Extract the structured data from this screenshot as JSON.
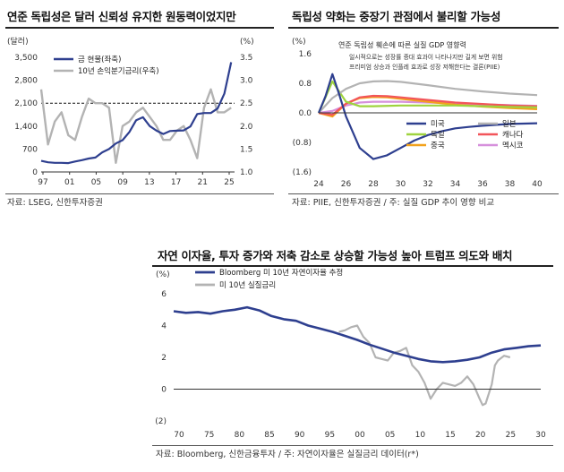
{
  "panels": [
    {
      "title": "연준 독립성은 달러 신뢰성 유지한 원동력이었지만",
      "source": "자료: LSEG, 신한투자증권"
    },
    {
      "title": "독립성 약화는 중장기 관점에서 불리할 가능성",
      "source": "자료: PIIE, 신한투자증권 / 주: 실질 GDP 추이 영향 비교"
    },
    {
      "title": "자연 이자율, 투자 증가와 저축 감소로 상승할 가능성 높아 트럼프 의도와 배치",
      "source": "자료: Bloomberg, 신한금융투자 / 주: 자연이자율은 실질금리 데이터(r*)"
    }
  ],
  "chart_data": [
    {
      "type": "line",
      "title": "연준 독립성은 달러 신뢰성 유지한 원동력이었지만",
      "ylabel_left": "(달러)",
      "ylabel_right": "(%)",
      "x_ticks": [
        "97",
        "01",
        "05",
        "09",
        "13",
        "17",
        "21",
        "25"
      ],
      "x_range": [
        1997,
        2025.5
      ],
      "y_left_ticks": [
        "0",
        "700",
        "1,400",
        "2,100",
        "2,800",
        "3,500"
      ],
      "y_left_range": [
        0,
        3500
      ],
      "y_right_ticks": [
        "1.0",
        "1.5",
        "2.0",
        "2.5",
        "3.0",
        "3.5"
      ],
      "y_right_range": [
        1.0,
        3.5
      ],
      "reference_line": {
        "axis": "left",
        "value": 2100,
        "style": "dashed"
      },
      "legend_position": "top-left",
      "series": [
        {
          "name": "금 현물(좌축)",
          "axis": "left",
          "color": "#2e3f8f",
          "x": [
            1997,
            1998,
            1999,
            2000,
            2001,
            2002,
            2003,
            2004,
            2005,
            2006,
            2007,
            2008,
            2009,
            2010,
            2011,
            2012,
            2013,
            2014,
            2015,
            2016,
            2017,
            2018,
            2019,
            2020,
            2021,
            2022,
            2023,
            2024,
            2025
          ],
          "values": [
            340,
            295,
            280,
            280,
            270,
            320,
            360,
            410,
            440,
            600,
            700,
            870,
            970,
            1220,
            1580,
            1670,
            1400,
            1260,
            1160,
            1250,
            1260,
            1270,
            1390,
            1770,
            1800,
            1800,
            1940,
            2390,
            3350
          ]
        },
        {
          "name": "10년 손익분기금리(우축)",
          "axis": "right",
          "color": "#b3b3b3",
          "x": [
            1997,
            1998,
            1999,
            2000,
            2001,
            2002,
            2003,
            2004,
            2005,
            2006,
            2007,
            2008,
            2009,
            2010,
            2011,
            2012,
            2013,
            2014,
            2015,
            2016,
            2017,
            2018,
            2019,
            2020,
            2021,
            2022,
            2023,
            2024,
            2025
          ],
          "values": [
            2.8,
            1.6,
            2.1,
            2.3,
            1.8,
            1.7,
            2.2,
            2.6,
            2.5,
            2.5,
            2.4,
            1.2,
            2.0,
            2.1,
            2.3,
            2.4,
            2.2,
            2.0,
            1.7,
            1.7,
            1.9,
            2.0,
            1.7,
            1.3,
            2.4,
            2.8,
            2.3,
            2.3,
            2.4
          ]
        }
      ]
    },
    {
      "type": "line",
      "title": "독립성 약화는 중장기 관점에서 불리할 가능성",
      "subtitle": "연준 독립성 훼손에 따른 실질 GDP 영향력",
      "note": [
        "일시적으로는 성장률 증대 효과이 나타나지만 길게 보면 위험",
        "프리미엄 상승과 인플레 효과로 성장 저해한다는 결론(PIIE)"
      ],
      "ylabel": "(%)",
      "x_ticks": [
        "24",
        "26",
        "28",
        "30",
        "32",
        "34",
        "36",
        "38",
        "40"
      ],
      "x_range": [
        2024,
        2040
      ],
      "y_ticks": [
        "(1.6)",
        "(0.8)",
        "0.0",
        "0.8",
        "1.6"
      ],
      "y_range": [
        -1.6,
        1.6
      ],
      "legend_position": "bottom-right",
      "series": [
        {
          "name": "미국",
          "color": "#2e3f8f",
          "x": [
            2024,
            2024.5,
            2025,
            2025.5,
            2026,
            2027,
            2028,
            2029,
            2030,
            2031,
            2032,
            2033,
            2034,
            2035,
            2036,
            2038,
            2040
          ],
          "values": [
            0,
            0.45,
            1.05,
            0.5,
            -0.1,
            -0.95,
            -1.25,
            -1.15,
            -0.95,
            -0.75,
            -0.6,
            -0.5,
            -0.42,
            -0.38,
            -0.35,
            -0.3,
            -0.28
          ]
        },
        {
          "name": "일본",
          "color": "#b3b3b3",
          "x": [
            2024,
            2025,
            2026,
            2027,
            2028,
            2029,
            2030,
            2032,
            2034,
            2036,
            2038,
            2040
          ],
          "values": [
            0,
            0.4,
            0.65,
            0.8,
            0.85,
            0.86,
            0.84,
            0.75,
            0.65,
            0.58,
            0.52,
            0.48
          ]
        },
        {
          "name": "독일",
          "color": "#9fd33f",
          "x": [
            2024,
            2025,
            2026,
            2027,
            2028,
            2030,
            2032,
            2034,
            2036,
            2038,
            2040
          ],
          "values": [
            0,
            0.85,
            0.3,
            0.18,
            0.18,
            0.2,
            0.2,
            0.2,
            0.18,
            0.16,
            0.15
          ]
        },
        {
          "name": "캐나다",
          "color": "#f2555a",
          "x": [
            2024,
            2025,
            2026,
            2027,
            2028,
            2029,
            2030,
            2032,
            2034,
            2036,
            2038,
            2040
          ],
          "values": [
            0,
            -0.05,
            0.25,
            0.42,
            0.46,
            0.45,
            0.42,
            0.35,
            0.28,
            0.24,
            0.2,
            0.18
          ]
        },
        {
          "name": "중국",
          "color": "#f2a21c",
          "x": [
            2024,
            2025,
            2026,
            2027,
            2028,
            2029,
            2030,
            2032,
            2034,
            2036,
            2038,
            2040
          ],
          "values": [
            0,
            -0.1,
            0.25,
            0.4,
            0.43,
            0.42,
            0.38,
            0.3,
            0.22,
            0.17,
            0.13,
            0.1
          ]
        },
        {
          "name": "멕시코",
          "color": "#d690dc",
          "x": [
            2024,
            2025,
            2026,
            2027,
            2028,
            2030,
            2032,
            2034,
            2036,
            2038,
            2040
          ],
          "values": [
            0,
            0.05,
            0.2,
            0.28,
            0.3,
            0.3,
            0.28,
            0.26,
            0.23,
            0.21,
            0.19
          ]
        }
      ]
    },
    {
      "type": "line",
      "title": "자연 이자율, 투자 증가와 저축 감소로 상승할 가능성 높아 트럼프 의도와 배치",
      "ylabel": "(%)",
      "x_ticks": [
        "70",
        "75",
        "80",
        "85",
        "90",
        "95",
        "00",
        "05",
        "10",
        "15",
        "20",
        "25",
        "30"
      ],
      "x_range": [
        1970,
        2030
      ],
      "y_ticks": [
        "(2)",
        "0",
        "2",
        "4",
        "6"
      ],
      "y_range": [
        -2,
        6
      ],
      "legend_position": "top-left",
      "series": [
        {
          "name": "Bloomberg 미 10년 자연이자율 추정",
          "color": "#2e3f8f",
          "x": [
            1970,
            1972,
            1974,
            1976,
            1978,
            1980,
            1982,
            1984,
            1986,
            1988,
            1990,
            1992,
            1994,
            1996,
            1998,
            2000,
            2002,
            2004,
            2006,
            2008,
            2010,
            2012,
            2014,
            2016,
            2018,
            2020,
            2022,
            2024,
            2026,
            2028,
            2030
          ],
          "values": [
            4.9,
            4.8,
            4.85,
            4.75,
            4.9,
            5.0,
            5.15,
            4.95,
            4.6,
            4.4,
            4.3,
            4.0,
            3.8,
            3.6,
            3.35,
            3.1,
            2.8,
            2.55,
            2.3,
            2.1,
            1.9,
            1.75,
            1.7,
            1.75,
            1.85,
            2.0,
            2.3,
            2.5,
            2.6,
            2.7,
            2.75
          ]
        },
        {
          "name": "미 10년 실질금리",
          "color": "#b3b3b3",
          "x": [
            1997,
            1998,
            1999,
            2000,
            2001,
            2002,
            2003,
            2004,
            2005,
            2006,
            2007,
            2008,
            2009,
            2010,
            2011,
            2012,
            2013,
            2014,
            2015,
            2016,
            2017,
            2018,
            2019,
            2020,
            2020.5,
            2021,
            2022,
            2022.5,
            2023,
            2024,
            2025
          ],
          "values": [
            3.6,
            3.7,
            3.9,
            4.0,
            3.3,
            2.9,
            2.0,
            1.9,
            1.8,
            2.3,
            2.4,
            2.6,
            1.5,
            1.1,
            0.4,
            -0.6,
            0.0,
            0.4,
            0.3,
            0.2,
            0.4,
            0.8,
            0.3,
            -0.6,
            -1.0,
            -0.9,
            0.3,
            1.5,
            1.8,
            2.1,
            2.0
          ]
        }
      ]
    }
  ]
}
